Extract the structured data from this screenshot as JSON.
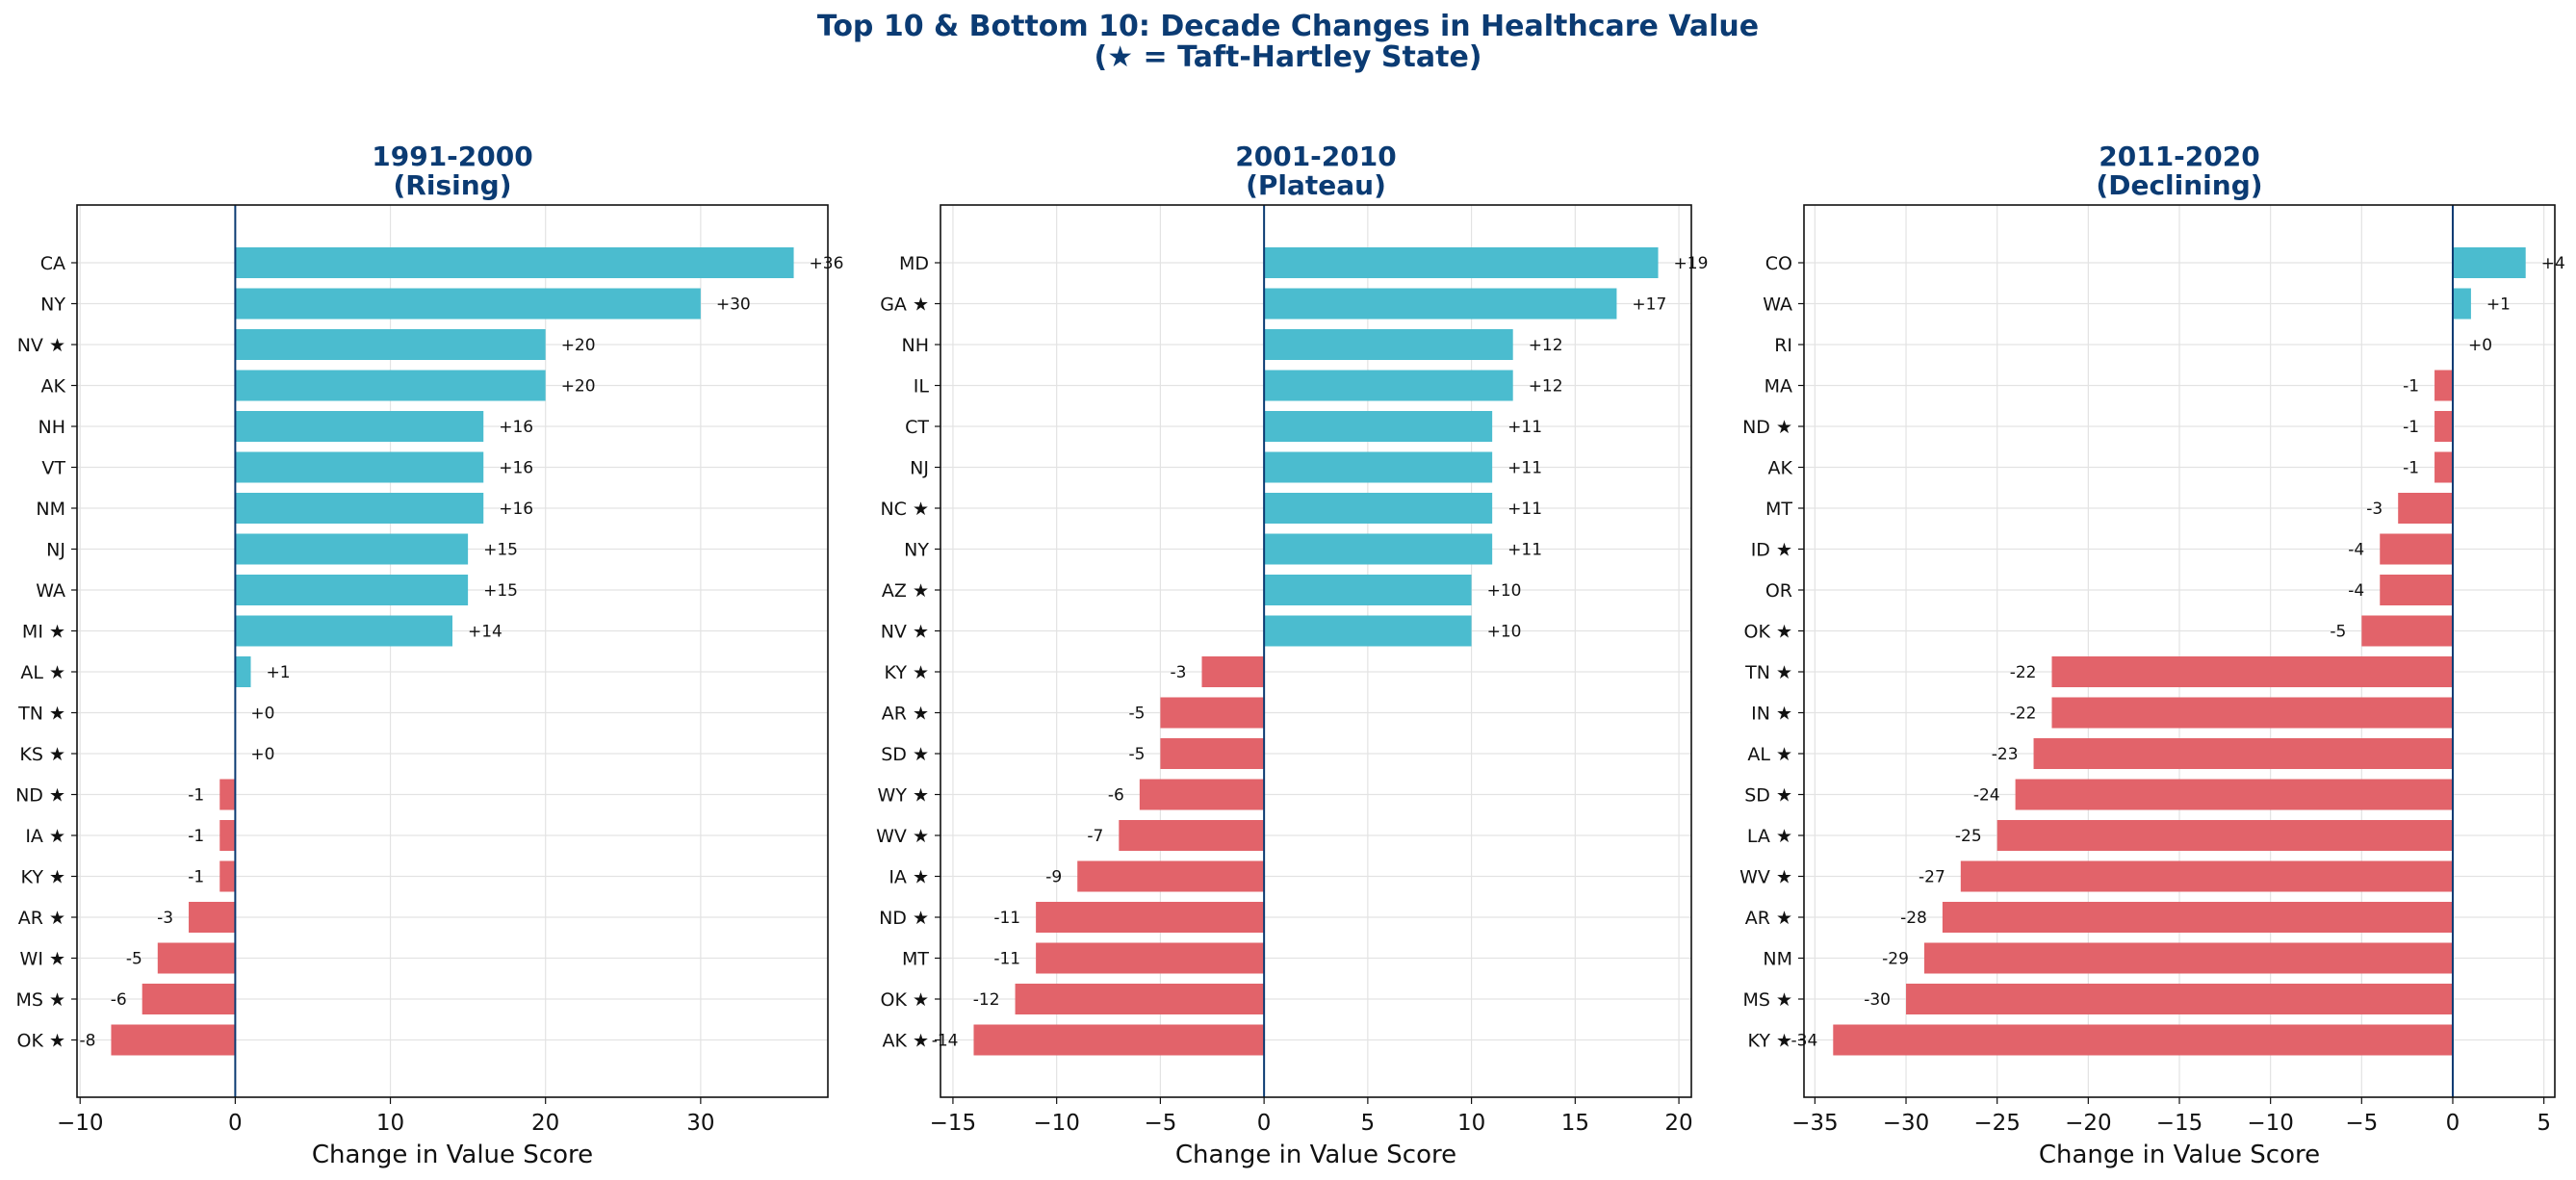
{
  "figure": {
    "title_line1": "Top 10 & Bottom 10: Decade Changes in Healthcare Value",
    "title_line2": "(★ = Taft-Hartley State)"
  },
  "colors": {
    "positive": "#4bbccf",
    "negative": "#e2636a",
    "title": "#0b3b73",
    "zero_line": "#0b3b73",
    "grid": "#e3e3e3"
  },
  "chart_data": [
    {
      "type": "bar",
      "orientation": "horizontal",
      "title_line1": "1991-2000",
      "title_line2": "(Rising)",
      "xlabel": "Change in Value Score",
      "xlim": [
        -10.2,
        38.2
      ],
      "xticks": [
        -10,
        0,
        10,
        20,
        30
      ],
      "grid": true,
      "categories": [
        "CA",
        "NY",
        "NV ★",
        "AK",
        "NH",
        "VT",
        "NM",
        "NJ",
        "WA",
        "MI ★",
        "AL ★",
        "TN ★",
        "KS ★",
        "ND ★",
        "IA ★",
        "KY ★",
        "AR ★",
        "WI ★",
        "MS ★",
        "OK ★"
      ],
      "values": [
        36,
        30,
        20,
        20,
        16,
        16,
        16,
        15,
        15,
        14,
        1,
        0,
        0,
        -1,
        -1,
        -1,
        -3,
        -5,
        -6,
        -8
      ],
      "value_labels": [
        "+36",
        "+30",
        "+20",
        "+20",
        "+16",
        "+16",
        "+16",
        "+15",
        "+15",
        "+14",
        "+1",
        "+0",
        "+0",
        "-1",
        "-1",
        "-1",
        "-3",
        "-5",
        "-6",
        "-8"
      ]
    },
    {
      "type": "bar",
      "orientation": "horizontal",
      "title_line1": "2001-2010",
      "title_line2": "(Plateau)",
      "xlabel": "Change in Value Score",
      "xlim": [
        -15.6,
        20.6
      ],
      "xticks": [
        -15,
        -10,
        -5,
        0,
        5,
        10,
        15,
        20
      ],
      "grid": true,
      "categories": [
        "MD",
        "GA ★",
        "NH",
        "IL",
        "CT",
        "NJ",
        "NC ★",
        "NY",
        "AZ ★",
        "NV ★",
        "KY ★",
        "AR ★",
        "SD ★",
        "WY ★",
        "WV ★",
        "IA ★",
        "ND ★",
        "MT",
        "OK ★",
        "AK ★"
      ],
      "values": [
        19,
        17,
        12,
        12,
        11,
        11,
        11,
        11,
        10,
        10,
        -3,
        -5,
        -5,
        -6,
        -7,
        -9,
        -11,
        -11,
        -12,
        -14
      ],
      "value_labels": [
        "+19",
        "+17",
        "+12",
        "+12",
        "+11",
        "+11",
        "+11",
        "+11",
        "+10",
        "+10",
        "-3",
        "-5",
        "-5",
        "-6",
        "-7",
        "-9",
        "-11",
        "-11",
        "-12",
        "-14"
      ]
    },
    {
      "type": "bar",
      "orientation": "horizontal",
      "title_line1": "2011-2020",
      "title_line2": "(Declining)",
      "xlabel": "Change in Value Score",
      "xlim": [
        -35.6,
        5.6
      ],
      "xticks": [
        -35,
        -30,
        -25,
        -20,
        -15,
        -10,
        -5,
        0,
        5
      ],
      "grid": true,
      "categories": [
        "CO",
        "WA",
        "RI",
        "MA",
        "ND ★",
        "AK",
        "MT",
        "ID ★",
        "OR",
        "OK ★",
        "TN ★",
        "IN ★",
        "AL ★",
        "SD ★",
        "LA ★",
        "WV ★",
        "AR ★",
        "NM",
        "MS ★",
        "KY ★"
      ],
      "values": [
        4,
        1,
        0,
        -1,
        -1,
        -1,
        -3,
        -4,
        -4,
        -5,
        -22,
        -22,
        -23,
        -24,
        -25,
        -27,
        -28,
        -29,
        -30,
        -34
      ],
      "value_labels": [
        "+4",
        "+1",
        "+0",
        "-1",
        "-1",
        "-1",
        "-3",
        "-4",
        "-4",
        "-5",
        "-22",
        "-22",
        "-23",
        "-24",
        "-25",
        "-27",
        "-28",
        "-29",
        "-30",
        "-34"
      ]
    }
  ]
}
